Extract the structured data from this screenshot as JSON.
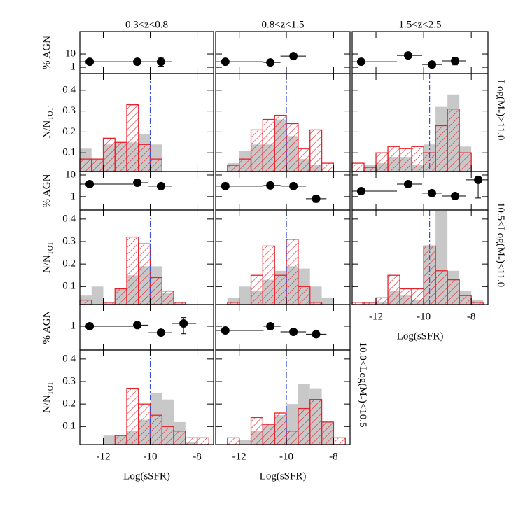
{
  "chart_data": [
    {
      "type": "scatter",
      "title": "0.3<z<0.8",
      "ylabel": "% AGN",
      "log_y": true,
      "xlim": [
        -13,
        -7.3
      ],
      "ylim": [
        0.34,
        480
      ],
      "xticks": [
        -12,
        -10,
        -8
      ],
      "yticks": [
        1,
        10
      ],
      "show_xtick_labels": false,
      "show_ytick_labels": true,
      "color": "#000000",
      "x": [
        -12.58,
        -10.55,
        -9.54
      ],
      "xlow": [
        -13,
        -10.73,
        -10.07
      ],
      "xhigh": [
        -10.73,
        -10.07,
        -9.09
      ],
      "values": [
        2.6,
        2.6,
        2.6
      ],
      "ylow": [
        null,
        null,
        1.2
      ],
      "yhigh": [
        null,
        null,
        5.5
      ]
    },
    {
      "type": "scatter",
      "title": "0.8<z<1.5",
      "log_y": true,
      "xlim": [
        -13,
        -7.3
      ],
      "ylim": [
        0.34,
        480
      ],
      "xticks": [
        -12,
        -10,
        -8
      ],
      "yticks": [
        1,
        10
      ],
      "show_xtick_labels": false,
      "show_ytick_labels": false,
      "color": "#000000",
      "x": [
        -12.59,
        -10.68,
        -9.7
      ],
      "xlow": [
        -13,
        -10.97,
        -10.25
      ],
      "xhigh": [
        -10.97,
        -10.25,
        -9.17
      ],
      "values": [
        2.6,
        2.3,
        6.9
      ],
      "ylow": [
        null,
        null,
        5.2
      ],
      "yhigh": [
        null,
        null,
        8.5
      ]
    },
    {
      "type": "scatter",
      "title": "1.5<z<2.5",
      "log_y": true,
      "xlim": [
        -13,
        -7.3
      ],
      "ylim": [
        0.34,
        480
      ],
      "xticks": [
        -12,
        -10,
        -8
      ],
      "yticks": [
        1,
        10
      ],
      "show_xtick_labels": false,
      "show_ytick_labels": false,
      "color": "#000000",
      "x": [
        -12.62,
        -10.65,
        -9.65,
        -8.68
      ],
      "xlow": [
        -13,
        -11.12,
        -10.06,
        -9.21
      ],
      "xhigh": [
        -11.12,
        -10.06,
        -9.21,
        -8.24
      ],
      "values": [
        2.6,
        7.8,
        1.6,
        3.0
      ],
      "ylow": [
        null,
        5.8,
        null,
        1.5
      ],
      "yhigh": [
        null,
        10.5,
        null,
        5.5
      ]
    },
    {
      "type": "histogram",
      "ylabel": "N/N",
      "ylabel_sub": "TOT",
      "xlim": [
        -13,
        -7.3
      ],
      "ylim": [
        0.01,
        0.48
      ],
      "xticks": [
        -12,
        -10,
        -8
      ],
      "yticks": [
        0.1,
        0.2,
        0.3,
        0.4
      ],
      "show_xtick_labels": false,
      "show_ytick_labels": true,
      "vline": -10,
      "vline_color": "#3a4fd8",
      "bins": [
        -13,
        -12.5,
        -12,
        -11.5,
        -11,
        -10.5,
        -10,
        -9.5,
        -9,
        -8.5,
        -8,
        -7.5
      ],
      "series": [
        {
          "color": "#c8c8c8",
          "values": [
            0.12,
            0.07,
            0.14,
            0.15,
            0.15,
            0.19,
            0.14,
            0,
            0,
            0,
            0
          ]
        },
        {
          "color": "#e8202a",
          "hatch": true,
          "values": [
            0.07,
            0.07,
            0.17,
            0.15,
            0.33,
            0.14,
            0.07,
            0,
            0,
            0,
            0
          ]
        }
      ]
    },
    {
      "type": "histogram",
      "xlim": [
        -13,
        -7.3
      ],
      "ylim": [
        0.01,
        0.48
      ],
      "xticks": [
        -12,
        -10,
        -8
      ],
      "yticks": [
        0.1,
        0.2,
        0.3,
        0.4
      ],
      "show_xtick_labels": false,
      "show_ytick_labels": false,
      "vline": -10,
      "vline_color": "#3a4fd8",
      "bins": [
        -13,
        -12.5,
        -12,
        -11.5,
        -11,
        -10.5,
        -10,
        -9.5,
        -9,
        -8.5,
        -8,
        -7.5
      ],
      "series": [
        {
          "color": "#c8c8c8",
          "values": [
            0,
            0.05,
            0.11,
            0.14,
            0.14,
            0.26,
            0.18,
            0.07,
            0.04,
            0,
            0
          ]
        },
        {
          "color": "#e8202a",
          "hatch": true,
          "values": [
            0,
            0.04,
            0.07,
            0.21,
            0.26,
            0.28,
            0.24,
            0.12,
            0.21,
            0.05,
            0
          ]
        }
      ]
    },
    {
      "type": "histogram",
      "side_label": [
        "Log(M",
        "*",
        ")>11.0"
      ],
      "xlim": [
        -13,
        -7.3
      ],
      "ylim": [
        0.01,
        0.48
      ],
      "xticks": [
        -12,
        -10,
        -8
      ],
      "yticks": [
        0.1,
        0.2,
        0.3,
        0.4
      ],
      "show_xtick_labels": false,
      "show_ytick_labels": false,
      "vline": -9.75,
      "vline_color": "#3a4fd8",
      "bins": [
        -13,
        -12.5,
        -12,
        -11.5,
        -11,
        -10.5,
        -10,
        -9.5,
        -9,
        -8.5,
        -8,
        -7.5
      ],
      "series": [
        {
          "color": "#c8c8c8",
          "values": [
            0,
            0.04,
            0.05,
            0.08,
            0.08,
            0.04,
            0.14,
            0.32,
            0.38,
            0.13,
            0
          ]
        },
        {
          "color": "#e8202a",
          "hatch": true,
          "values": [
            0.05,
            0.03,
            0.1,
            0.13,
            0.12,
            0.13,
            0.1,
            0.23,
            0.31,
            0.1,
            0
          ]
        }
      ]
    },
    {
      "type": "scatter",
      "ylabel": "% AGN",
      "log_y": true,
      "xlim": [
        -13,
        -7.3
      ],
      "ylim": [
        0.24,
        14.5
      ],
      "xticks": [
        -12,
        -10,
        -8
      ],
      "yticks": [
        1,
        10
      ],
      "show_xtick_labels": false,
      "show_ytick_labels": true,
      "color": "#000000",
      "x": [
        -12.58,
        -10.55,
        -9.54
      ],
      "xlow": [
        -13,
        -10.73,
        -10.07
      ],
      "xhigh": [
        -10.73,
        -10.07,
        -9.09
      ],
      "values": [
        3.8,
        4.4,
        3.05
      ],
      "ylow": [
        null,
        null,
        2.5
      ],
      "yhigh": [
        null,
        null,
        3.7
      ]
    },
    {
      "type": "scatter",
      "log_y": true,
      "xlim": [
        -13,
        -7.3
      ],
      "ylim": [
        0.24,
        14.5
      ],
      "xticks": [
        -12,
        -10,
        -8
      ],
      "yticks": [
        1,
        10
      ],
      "show_xtick_labels": false,
      "show_ytick_labels": false,
      "color": "#000000",
      "x": [
        -12.59,
        -10.68,
        -9.7,
        -8.74
      ],
      "xlow": [
        -13,
        -10.97,
        -10.25,
        -9.17
      ],
      "xhigh": [
        -10.97,
        -10.25,
        -9.17,
        -8.3
      ],
      "values": [
        3.05,
        3.3,
        3.05,
        0.8
      ],
      "ylow": [
        null,
        null,
        null,
        0.55
      ],
      "yhigh": [
        null,
        null,
        null,
        1.1
      ]
    },
    {
      "type": "scatter",
      "log_y": true,
      "xlim": [
        -13,
        -7.3
      ],
      "ylim": [
        0.24,
        14.5
      ],
      "xticks": [
        -12,
        -10,
        -8
      ],
      "yticks": [
        1,
        10
      ],
      "show_xtick_labels": false,
      "show_ytick_labels": false,
      "color": "#000000",
      "x": [
        -12.62,
        -10.65,
        -9.65,
        -8.68,
        -7.71
      ],
      "xlow": [
        -13,
        -11.12,
        -10.06,
        -9.21,
        -8.24
      ],
      "xhigh": [
        -11.12,
        -10.06,
        -9.21,
        -8.24,
        -7.3
      ],
      "values": [
        1.8,
        3.8,
        1.45,
        1.07,
        6.0
      ],
      "ylow": [
        null,
        null,
        null,
        0.8,
        0.86
      ],
      "yhigh": [
        null,
        null,
        null,
        1.4,
        8
      ]
    },
    {
      "type": "histogram",
      "ylabel": "N/N",
      "ylabel_sub": "TOT",
      "xlim": [
        -13,
        -7.3
      ],
      "ylim": [
        0.02,
        0.44
      ],
      "xticks": [
        -12,
        -10,
        -8
      ],
      "yticks": [
        0.1,
        0.2,
        0.3,
        0.4
      ],
      "show_xtick_labels": false,
      "show_ytick_labels": true,
      "vline": -10,
      "vline_color": "#3a4fd8",
      "bins": [
        -13,
        -12.5,
        -12,
        -11.5,
        -11,
        -10.5,
        -10,
        -9.5,
        -9,
        -8.5,
        -8,
        -7.5
      ],
      "series": [
        {
          "color": "#c8c8c8",
          "values": [
            0.06,
            0.1,
            0.03,
            0.09,
            0.15,
            0.19,
            0.19,
            0.07,
            0.03,
            0,
            0
          ]
        },
        {
          "color": "#e8202a",
          "hatch": true,
          "values": [
            0.04,
            0.02,
            0.03,
            0.09,
            0.32,
            0.29,
            0.14,
            0.08,
            0.03,
            0,
            0
          ]
        }
      ]
    },
    {
      "type": "histogram",
      "xlim": [
        -13,
        -7.3
      ],
      "ylim": [
        0.02,
        0.44
      ],
      "xticks": [
        -12,
        -10,
        -8
      ],
      "yticks": [
        0.1,
        0.2,
        0.3,
        0.4
      ],
      "show_xtick_labels": false,
      "show_ytick_labels": false,
      "vline": -10,
      "vline_color": "#3a4fd8",
      "bins": [
        -13,
        -12.5,
        -12,
        -11.5,
        -11,
        -10.5,
        -10,
        -9.5,
        -9,
        -8.5,
        -8,
        -7.5
      ],
      "series": [
        {
          "color": "#c8c8c8",
          "values": [
            0,
            0.05,
            0.1,
            0.08,
            0.13,
            0.17,
            0.19,
            0.18,
            0.1,
            0.05,
            0
          ]
        },
        {
          "color": "#e8202a",
          "hatch": true,
          "values": [
            0,
            0.03,
            0.02,
            0.15,
            0.28,
            0.15,
            0.31,
            0.1,
            0.03,
            0,
            0
          ]
        }
      ]
    },
    {
      "type": "histogram",
      "side_label": [
        "10.5<Log(M",
        "*",
        ")<11.0"
      ],
      "xlabel": "Log(sSFR)",
      "xlim": [
        -13,
        -7.3
      ],
      "ylim": [
        0.02,
        0.44
      ],
      "xticks": [
        -12,
        -10,
        -8
      ],
      "yticks": [
        0.1,
        0.2,
        0.3,
        0.4
      ],
      "show_xtick_labels": true,
      "show_ytick_labels": false,
      "vline": -9.75,
      "vline_color": "#3a4fd8",
      "bins": [
        -13,
        -12.5,
        -12,
        -11.5,
        -11,
        -10.5,
        -10,
        -9.5,
        -9,
        -8.5,
        -8,
        -7.5
      ],
      "series": [
        {
          "color": "#c8c8c8",
          "values": [
            0,
            0.03,
            0.03,
            0.08,
            0.06,
            0.04,
            0.28,
            0.44,
            0.17,
            0.08,
            0.04
          ]
        },
        {
          "color": "#e8202a",
          "hatch": true,
          "values": [
            0.03,
            0.03,
            0.05,
            0.15,
            0.09,
            0.09,
            0.28,
            0.17,
            0.13,
            0.06,
            0.03
          ]
        }
      ]
    },
    {
      "type": "scatter",
      "ylabel": "% AGN",
      "log_y": true,
      "xlim": [
        -13,
        -7.3
      ],
      "ylim": [
        0.08,
        10
      ],
      "xticks": [
        -12,
        -10,
        -8
      ],
      "yticks": [
        1
      ],
      "show_xtick_labels": false,
      "show_ytick_labels": true,
      "color": "#000000",
      "x": [
        -12.58,
        -10.55,
        -9.54,
        -8.58
      ],
      "xlow": [
        -13,
        -10.73,
        -10.07,
        -9.09
      ],
      "xhigh": [
        -10.73,
        -10.07,
        -9.09,
        -8.04
      ],
      "values": [
        1.0,
        1.13,
        0.51,
        1.35
      ],
      "ylow": [
        null,
        null,
        0.4,
        0.45
      ],
      "yhigh": [
        null,
        null,
        0.7,
        2.5
      ]
    },
    {
      "type": "scatter",
      "log_y": true,
      "xlim": [
        -13,
        -7.3
      ],
      "ylim": [
        0.08,
        10
      ],
      "xticks": [
        -12,
        -10,
        -8
      ],
      "yticks": [
        1
      ],
      "show_xtick_labels": false,
      "show_ytick_labels": false,
      "color": "#000000",
      "x": [
        -12.59,
        -10.68,
        -9.7,
        -8.74
      ],
      "xlow": [
        -13,
        -10.97,
        -10.25,
        -9.17
      ],
      "xhigh": [
        -10.97,
        -10.25,
        -9.17,
        -8.3
      ],
      "values": [
        0.64,
        1.0,
        0.55,
        0.43
      ],
      "ylow": [
        null,
        null,
        0.45,
        0.36
      ],
      "yhigh": [
        null,
        null,
        0.65,
        0.5
      ]
    },
    {
      "type": "histogram",
      "ylabel": "N/N",
      "ylabel_sub": "TOT",
      "xlabel": "Log(sSFR)",
      "xlim": [
        -13,
        -7.3
      ],
      "ylim": [
        0.02,
        0.44
      ],
      "xticks": [
        -12,
        -10,
        -8
      ],
      "yticks": [
        0.1,
        0.2,
        0.3,
        0.4
      ],
      "show_xtick_labels": true,
      "show_ytick_labels": true,
      "vline": -10,
      "vline_color": "#3a4fd8",
      "bins": [
        -13,
        -12.5,
        -12,
        -11.5,
        -11,
        -10.5,
        -10,
        -9.5,
        -9,
        -8.5,
        -8,
        -7.5
      ],
      "series": [
        {
          "color": "#c8c8c8",
          "values": [
            0,
            0.02,
            0.06,
            0.06,
            0.08,
            0.13,
            0.25,
            0.22,
            0.12,
            0.03,
            0
          ]
        },
        {
          "color": "#e8202a",
          "hatch": true,
          "values": [
            0.02,
            0.02,
            0.02,
            0.06,
            0.27,
            0.2,
            0.15,
            0.1,
            0.08,
            0.05,
            0.05
          ]
        }
      ]
    },
    {
      "type": "histogram",
      "side_label": [
        "10.0<Log(M",
        "*",
        ")<10.5"
      ],
      "xlabel": "Log(sSFR)",
      "xlim": [
        -13,
        -7.3
      ],
      "ylim": [
        0.02,
        0.44
      ],
      "xticks": [
        -12,
        -10,
        -8
      ],
      "yticks": [
        0.1,
        0.2,
        0.3,
        0.4
      ],
      "show_xtick_labels": true,
      "show_ytick_labels": false,
      "vline": -10,
      "vline_color": "#3a4fd8",
      "bins": [
        -13,
        -12.5,
        -12,
        -11.5,
        -11,
        -10.5,
        -10,
        -9.5,
        -9,
        -8.5,
        -8,
        -7.5
      ],
      "series": [
        {
          "color": "#c8c8c8",
          "values": [
            0,
            0.02,
            0.04,
            0.08,
            0.11,
            0.15,
            0.2,
            0.29,
            0.27,
            0.12,
            0
          ]
        },
        {
          "color": "#e8202a",
          "hatch": true,
          "values": [
            0,
            0.05,
            0.02,
            0.14,
            0.11,
            0.16,
            0.08,
            0.18,
            0.22,
            0.12,
            0.05
          ]
        }
      ]
    }
  ]
}
